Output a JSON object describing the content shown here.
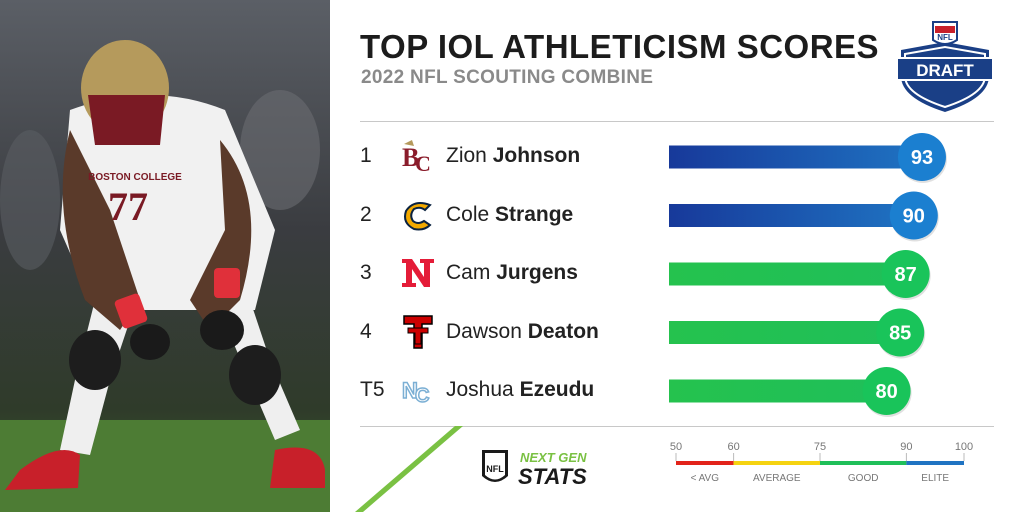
{
  "header": {
    "title": "TOP IOL ATHLETICISM SCORES",
    "subtitle": "2022 NFL SCOUTING COMBINE",
    "logo_text": "DRAFT"
  },
  "photo": {
    "jersey_number": "77",
    "jersey_text": "BOSTON COLLEGE"
  },
  "chart_data": {
    "type": "bar",
    "title": "TOP IOL ATHLETICISM SCORES",
    "subtitle": "2022 NFL SCOUTING COMBINE",
    "categories": [
      "Zion Johnson",
      "Cole Strange",
      "Cam Jurgens",
      "Dawson Deaton",
      "Joshua Ezeudu"
    ],
    "values": [
      93,
      90,
      87,
      85,
      80
    ],
    "xlim": [
      0,
      100
    ],
    "rows": [
      {
        "rank": "1",
        "first": "Zion",
        "last": "Johnson",
        "score": 93,
        "school_logo": "boston-college-logo",
        "tier": "elite"
      },
      {
        "rank": "2",
        "first": "Cole",
        "last": "Strange",
        "score": 90,
        "school_logo": "chattanooga-logo",
        "tier": "elite"
      },
      {
        "rank": "3",
        "first": "Cam",
        "last": "Jurgens",
        "score": 87,
        "school_logo": "nebraska-logo",
        "tier": "good"
      },
      {
        "rank": "4",
        "first": "Dawson",
        "last": "Deaton",
        "score": 85,
        "school_logo": "texas-tech-logo",
        "tier": "good"
      },
      {
        "rank": "T5",
        "first": "Joshua",
        "last": "Ezeudu",
        "score": 80,
        "school_logo": "north-carolina-logo",
        "tier": "good"
      }
    ],
    "legend": {
      "ticks": [
        "50",
        "60",
        "75",
        "90",
        "100"
      ],
      "tick_values": [
        50,
        60,
        75,
        90,
        100
      ],
      "segments": [
        {
          "label": "< AVG",
          "from": 50,
          "to": 60,
          "color": "#e2231a"
        },
        {
          "label": "AVERAGE",
          "from": 60,
          "to": 75,
          "color": "#f5d311"
        },
        {
          "label": "GOOD",
          "from": 75,
          "to": 90,
          "color": "#1fbf59"
        },
        {
          "label": "ELITE",
          "from": 90,
          "to": 100,
          "color": "#1f73c2"
        }
      ]
    },
    "colors": {
      "elite_bar": "#1f73c2",
      "elite_bar_dark": "#17399a",
      "good_bar": "#1fbf59",
      "good_circle": "#19c45a",
      "elite_circle": "#1b7fd0"
    }
  },
  "branding": {
    "ngs_top": "NEXT GEN",
    "ngs_bottom": "STATS",
    "nfl_text": "NFL"
  }
}
